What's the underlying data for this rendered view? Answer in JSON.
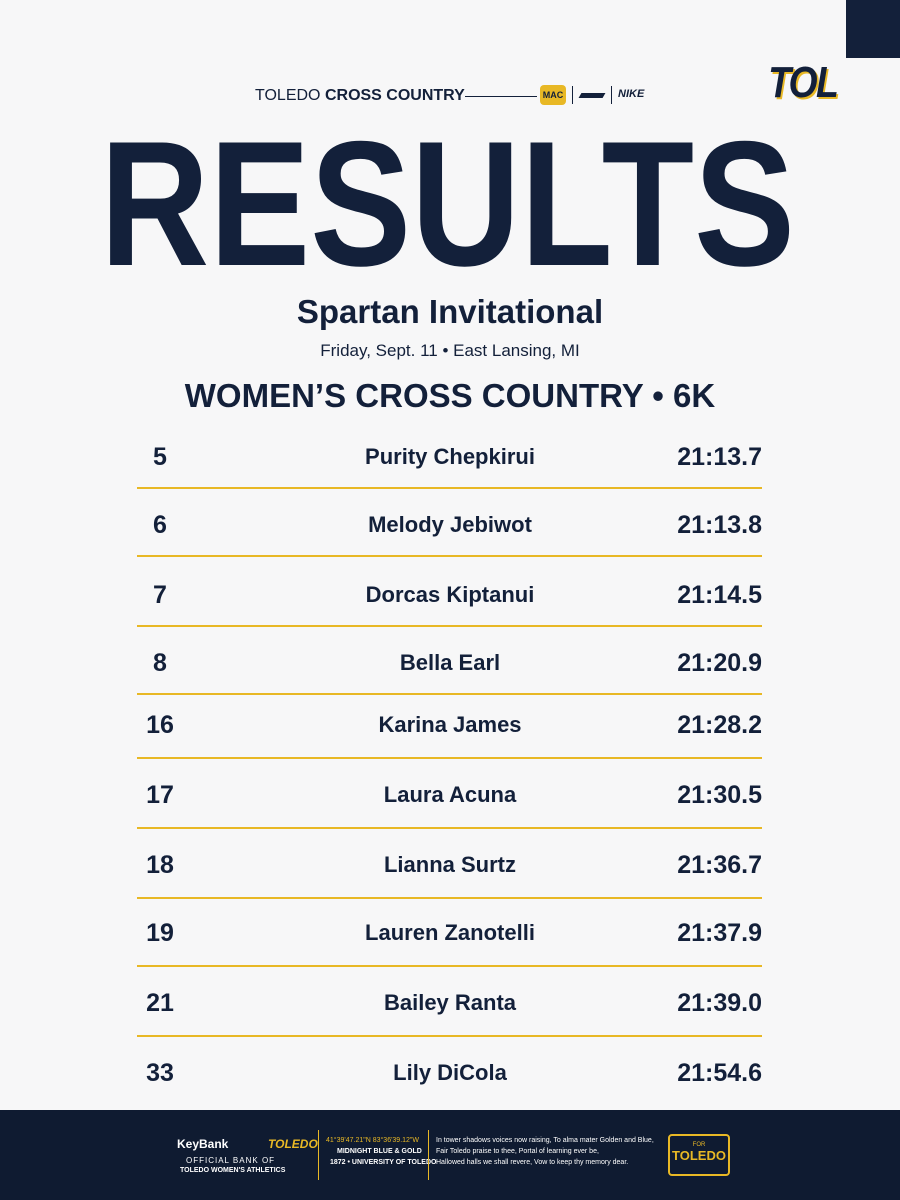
{
  "header": {
    "brand_light": "TOLEDO",
    "brand_bold": "CROSS COUNTRY",
    "conference": "MAC",
    "sponsor": "NIKE",
    "logo": "TOL"
  },
  "title": "RESULTS",
  "event": {
    "name": "Spartan Invitational",
    "details": "Friday, Sept. 11 • East Lansing, MI"
  },
  "section": "WOMEN’S CROSS COUNTRY • 6K",
  "results": [
    {
      "place": 5,
      "name": "Purity Chepkirui",
      "time": "21:13.7"
    },
    {
      "place": 6,
      "name": "Melody Jebiwot",
      "time": "21:13.8"
    },
    {
      "place": 7,
      "name": "Dorcas Kiptanui",
      "time": "21:14.5"
    },
    {
      "place": 8,
      "name": "Bella Earl",
      "time": "21:20.9"
    },
    {
      "place": 16,
      "name": "Karina James",
      "time": "21:28.2"
    },
    {
      "place": 17,
      "name": "Laura Acuna",
      "time": "21:30.5"
    },
    {
      "place": 18,
      "name": "Lianna Surtz",
      "time": "21:36.7"
    },
    {
      "place": 19,
      "name": "Lauren Zanotelli",
      "time": "21:37.9"
    },
    {
      "place": 21,
      "name": "Bailey Ranta",
      "time": "21:39.0"
    },
    {
      "place": 33,
      "name": "Lily DiCola",
      "time": "21:54.6"
    }
  ],
  "footer": {
    "bank": "KeyBank",
    "bank_partner": "TOLEDO",
    "official_line1": "OFFICIAL BANK OF",
    "official_line2": "TOLEDO WOMEN'S ATHLETICS",
    "coords": "41°39'47.21\"N 83°36'39.12\"W",
    "colors": "MIDNIGHT BLUE & GOLD",
    "founded": "1872 • UNIVERSITY OF TOLEDO",
    "alma_mater": [
      "In tower shadows voices now raising, To alma mater Golden and Blue,",
      "Fair Toledo praise to thee, Portal of learning ever be,",
      "Hallowed halls we shall revere, Vow to keep thy memory dear."
    ],
    "badge_small": "FOR",
    "badge": "TOLEDO"
  }
}
